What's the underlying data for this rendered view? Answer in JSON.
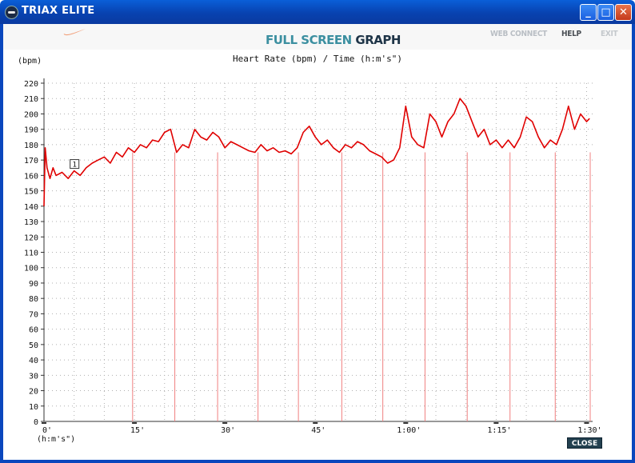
{
  "window": {
    "title": "TRIAX ELITE",
    "controls": {
      "minimize": "_",
      "maximize": "□",
      "close": "✕"
    }
  },
  "header": {
    "title_part1": "FULL SCREEN",
    "title_part2": "GRAPH",
    "nav": {
      "web_connect": "WEB CONNECT",
      "help": "HELP",
      "exit": "EXIT"
    },
    "logo": "nike-swoosh-icon"
  },
  "footer": {
    "close_label": "CLOSE"
  },
  "colors": {
    "line": "#e00000",
    "marker": "#f08080",
    "grid": "#b0b0b0",
    "titlebar": "#0a47bd",
    "title_accent": "#3b8fa0"
  },
  "chart_data": {
    "type": "line",
    "title": "Heart Rate (bpm) / Time (h:m's\")",
    "ylabel": "(bpm)",
    "xlabel": "(h:m's\")",
    "ylim": [
      0,
      220
    ],
    "yticks": [
      0,
      10,
      20,
      30,
      40,
      50,
      60,
      70,
      80,
      90,
      100,
      110,
      120,
      130,
      140,
      150,
      160,
      170,
      180,
      190,
      200,
      210,
      220
    ],
    "xlim": [
      0,
      91
    ],
    "xticks": [
      {
        "value": 0,
        "label": "0'"
      },
      {
        "value": 15,
        "label": "15'"
      },
      {
        "value": 30,
        "label": "30'"
      },
      {
        "value": 45,
        "label": "45'"
      },
      {
        "value": 60,
        "label": "1:00'"
      },
      {
        "value": 75,
        "label": "1:15'"
      },
      {
        "value": 90,
        "label": "1:30'"
      }
    ],
    "grid": true,
    "lap_marker_label": "1",
    "lap_marker_x": 5,
    "lap_marker_y": 163,
    "lap_lines": [
      14.7,
      21.7,
      28.8,
      35.5,
      42.2,
      49.4,
      56.2,
      63.2,
      70.2,
      77.3,
      84.8,
      92.2
    ],
    "series": [
      {
        "points": [
          [
            0,
            140
          ],
          [
            0.2,
            178
          ],
          [
            0.5,
            165
          ],
          [
            1,
            158
          ],
          [
            1.5,
            165
          ],
          [
            2,
            160
          ],
          [
            3,
            162
          ],
          [
            4,
            158
          ],
          [
            5,
            163
          ],
          [
            6,
            160
          ],
          [
            7,
            165
          ],
          [
            8,
            168
          ],
          [
            9,
            170
          ],
          [
            10,
            172
          ],
          [
            11,
            168
          ],
          [
            12,
            175
          ],
          [
            13,
            172
          ],
          [
            14,
            178
          ],
          [
            15,
            175
          ],
          [
            16,
            180
          ],
          [
            17,
            178
          ],
          [
            18,
            183
          ],
          [
            19,
            182
          ],
          [
            20,
            188
          ],
          [
            21,
            190
          ],
          [
            22,
            175
          ],
          [
            23,
            180
          ],
          [
            24,
            178
          ],
          [
            25,
            190
          ],
          [
            26,
            185
          ],
          [
            27,
            183
          ],
          [
            28,
            188
          ],
          [
            29,
            185
          ],
          [
            30,
            178
          ],
          [
            31,
            182
          ],
          [
            32,
            180
          ],
          [
            33,
            178
          ],
          [
            34,
            176
          ],
          [
            35,
            175
          ],
          [
            36,
            180
          ],
          [
            37,
            176
          ],
          [
            38,
            178
          ],
          [
            39,
            175
          ],
          [
            40,
            176
          ],
          [
            41,
            174
          ],
          [
            42,
            178
          ],
          [
            43,
            188
          ],
          [
            44,
            192
          ],
          [
            45,
            185
          ],
          [
            46,
            180
          ],
          [
            47,
            183
          ],
          [
            48,
            178
          ],
          [
            49,
            175
          ],
          [
            50,
            180
          ],
          [
            51,
            178
          ],
          [
            52,
            182
          ],
          [
            53,
            180
          ],
          [
            54,
            176
          ],
          [
            55,
            174
          ],
          [
            56,
            172
          ],
          [
            57,
            168
          ],
          [
            58,
            170
          ],
          [
            59,
            178
          ],
          [
            60,
            205
          ],
          [
            61,
            185
          ],
          [
            62,
            180
          ],
          [
            63,
            178
          ],
          [
            64,
            200
          ],
          [
            65,
            195
          ],
          [
            66,
            185
          ],
          [
            67,
            195
          ],
          [
            68,
            200
          ],
          [
            69,
            210
          ],
          [
            70,
            205
          ],
          [
            71,
            195
          ],
          [
            72,
            185
          ],
          [
            73,
            190
          ],
          [
            74,
            180
          ],
          [
            75,
            183
          ],
          [
            76,
            178
          ],
          [
            77,
            183
          ],
          [
            78,
            178
          ],
          [
            79,
            185
          ],
          [
            80,
            198
          ],
          [
            81,
            195
          ],
          [
            82,
            185
          ],
          [
            83,
            178
          ],
          [
            84,
            183
          ],
          [
            85,
            180
          ],
          [
            86,
            190
          ],
          [
            87,
            205
          ],
          [
            88,
            190
          ],
          [
            89,
            200
          ],
          [
            90,
            195
          ],
          [
            90.5,
            197
          ]
        ]
      }
    ]
  }
}
